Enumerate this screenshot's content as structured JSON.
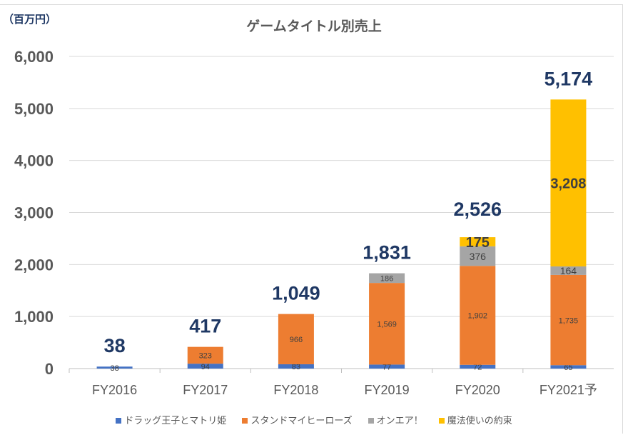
{
  "chart_data": {
    "type": "bar",
    "stacked": true,
    "title": "ゲームタイトル別売上",
    "unit_label": "（百万円）",
    "categories": [
      "FY2016",
      "FY2017",
      "FY2018",
      "FY2019",
      "FY2020",
      "FY2021予"
    ],
    "series": [
      {
        "name": "ドラッグ王子とマトリ姫",
        "color": "#4472c4",
        "values": [
          38,
          94,
          83,
          77,
          72,
          65
        ]
      },
      {
        "name": "スタンドマイヒーローズ",
        "color": "#ed7d31",
        "values": [
          null,
          323,
          966,
          1569,
          1902,
          1735
        ]
      },
      {
        "name": "オンエア！",
        "color": "#a5a5a5",
        "values": [
          null,
          null,
          null,
          186,
          376,
          164
        ]
      },
      {
        "name": "魔法使いの約束",
        "color": "#ffc000",
        "values": [
          null,
          null,
          null,
          null,
          175,
          3208
        ]
      }
    ],
    "totals": [
      "38",
      "417",
      "1,049",
      "1,831",
      "2,526",
      "5,174"
    ],
    "segment_labels": [
      [
        "38",
        "94",
        "83",
        "77",
        "72",
        "65"
      ],
      [
        "",
        "323",
        "966",
        "1,569",
        "1,902",
        "1,735"
      ],
      [
        "",
        "",
        "",
        "186",
        "376",
        "164"
      ],
      [
        "",
        "",
        "",
        "",
        "175",
        "3,208"
      ]
    ],
    "y_ticks": [
      "0",
      "1,000",
      "2,000",
      "3,000",
      "4,000",
      "5,000",
      "6,000"
    ],
    "ylim": [
      0,
      6000
    ],
    "grid": true,
    "legend_position": "bottom",
    "total_label_color": "#1f3864"
  }
}
